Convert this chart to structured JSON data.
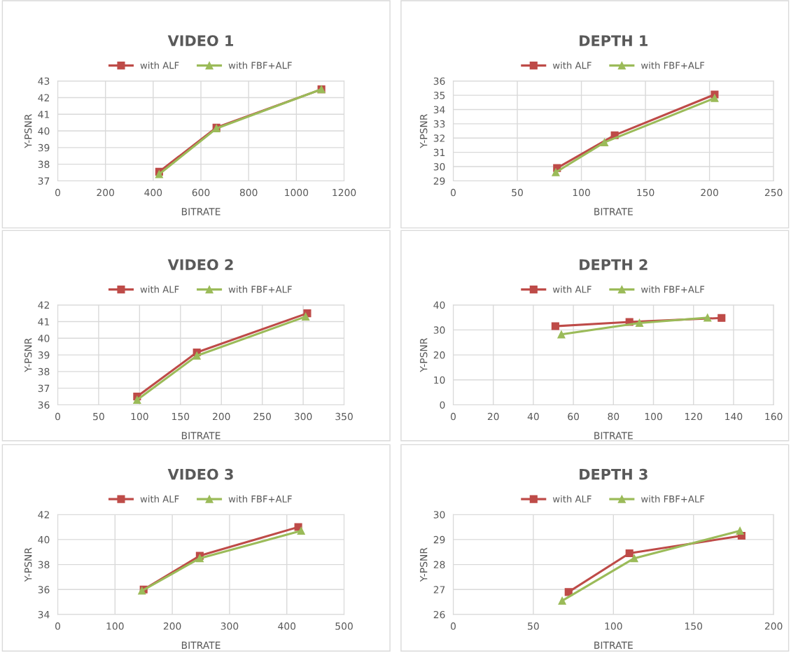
{
  "chart_data": [
    {
      "type": "line",
      "title": "VIDEO 1",
      "xlabel": "BITRATE",
      "ylabel": "Y-PSNR",
      "xlim": [
        0,
        1200
      ],
      "xticks": [
        0,
        200,
        400,
        600,
        800,
        1000,
        1200
      ],
      "ylim": [
        37,
        43
      ],
      "yticks": [
        37,
        38,
        39,
        40,
        41,
        42,
        43
      ],
      "grid": true,
      "legend": "top",
      "series": [
        {
          "name": "with ALF",
          "color": "#be4b48",
          "marker": "square",
          "x": [
            425,
            665,
            1105
          ],
          "values": [
            37.55,
            40.2,
            42.5
          ]
        },
        {
          "name": "with FBF+ALF",
          "color": "#9bbb59",
          "marker": "triangle",
          "x": [
            425,
            665,
            1105
          ],
          "values": [
            37.4,
            40.15,
            42.5
          ]
        }
      ]
    },
    {
      "type": "line",
      "title": "DEPTH 1",
      "xlabel": "BITRATE",
      "ylabel": "Y-PSNR",
      "xlim": [
        0,
        250
      ],
      "xticks": [
        0,
        50,
        100,
        150,
        200,
        250
      ],
      "ylim": [
        29,
        36
      ],
      "yticks": [
        29,
        30,
        31,
        32,
        33,
        34,
        35,
        36
      ],
      "grid": true,
      "legend": "top",
      "series": [
        {
          "name": "with ALF",
          "color": "#be4b48",
          "marker": "square",
          "x": [
            81,
            126,
            204
          ],
          "values": [
            29.9,
            32.2,
            35.05
          ]
        },
        {
          "name": "with FBF+ALF",
          "color": "#9bbb59",
          "marker": "triangle",
          "x": [
            80,
            118,
            204
          ],
          "values": [
            29.6,
            31.7,
            34.8
          ]
        }
      ]
    },
    {
      "type": "line",
      "title": "VIDEO 2",
      "xlabel": "BITRATE",
      "ylabel": "Y-PSNR",
      "xlim": [
        0,
        350
      ],
      "xticks": [
        0,
        50,
        100,
        150,
        200,
        250,
        300,
        350
      ],
      "ylim": [
        36,
        42
      ],
      "yticks": [
        36,
        37,
        38,
        39,
        40,
        41,
        42
      ],
      "grid": true,
      "legend": "top",
      "series": [
        {
          "name": "with ALF",
          "color": "#be4b48",
          "marker": "square",
          "x": [
            97,
            170,
            305
          ],
          "values": [
            36.5,
            39.15,
            41.5
          ]
        },
        {
          "name": "with FBF+ALF",
          "color": "#9bbb59",
          "marker": "triangle",
          "x": [
            97,
            170,
            303
          ],
          "values": [
            36.3,
            38.95,
            41.3
          ]
        }
      ]
    },
    {
      "type": "line",
      "title": "DEPTH 2",
      "xlabel": "BITRATE",
      "ylabel": "Y-PSNR",
      "xlim": [
        0,
        160
      ],
      "xticks": [
        0,
        20,
        40,
        60,
        80,
        100,
        120,
        140,
        160
      ],
      "ylim": [
        0,
        40
      ],
      "yticks": [
        0,
        10,
        20,
        30,
        40
      ],
      "grid": true,
      "legend": "top",
      "series": [
        {
          "name": "with ALF",
          "color": "#be4b48",
          "marker": "square",
          "x": [
            51,
            88,
            134
          ],
          "values": [
            31.5,
            33.2,
            34.8
          ]
        },
        {
          "name": "with FBF+ALF",
          "color": "#9bbb59",
          "marker": "triangle",
          "x": [
            54,
            93,
            127
          ],
          "values": [
            28.2,
            32.8,
            34.9
          ]
        }
      ]
    },
    {
      "type": "line",
      "title": "VIDEO 3",
      "xlabel": "BITRATE",
      "ylabel": "Y-PSNR",
      "xlim": [
        0,
        500
      ],
      "xticks": [
        0,
        100,
        200,
        300,
        400,
        500
      ],
      "ylim": [
        34,
        42
      ],
      "yticks": [
        34,
        36,
        38,
        40,
        42
      ],
      "grid": true,
      "legend": "top",
      "series": [
        {
          "name": "with ALF",
          "color": "#be4b48",
          "marker": "square",
          "x": [
            150,
            248,
            420
          ],
          "values": [
            36.0,
            38.7,
            41.0
          ]
        },
        {
          "name": "with FBF+ALF",
          "color": "#9bbb59",
          "marker": "triangle",
          "x": [
            147,
            248,
            425
          ],
          "values": [
            35.9,
            38.5,
            40.7
          ]
        }
      ]
    },
    {
      "type": "line",
      "title": "DEPTH 3",
      "xlabel": "BITRATE",
      "ylabel": "Y-PSNR",
      "xlim": [
        0,
        200
      ],
      "xticks": [
        0,
        50,
        100,
        150,
        200
      ],
      "ylim": [
        26,
        30
      ],
      "yticks": [
        26,
        27,
        28,
        29,
        30
      ],
      "grid": true,
      "legend": "top",
      "series": [
        {
          "name": "with ALF",
          "color": "#be4b48",
          "marker": "square",
          "x": [
            72,
            110,
            180
          ],
          "values": [
            26.9,
            28.45,
            29.15
          ]
        },
        {
          "name": "with FBF+ALF",
          "color": "#9bbb59",
          "marker": "triangle",
          "x": [
            68,
            113,
            179
          ],
          "values": [
            26.55,
            28.25,
            29.35
          ]
        }
      ]
    }
  ]
}
